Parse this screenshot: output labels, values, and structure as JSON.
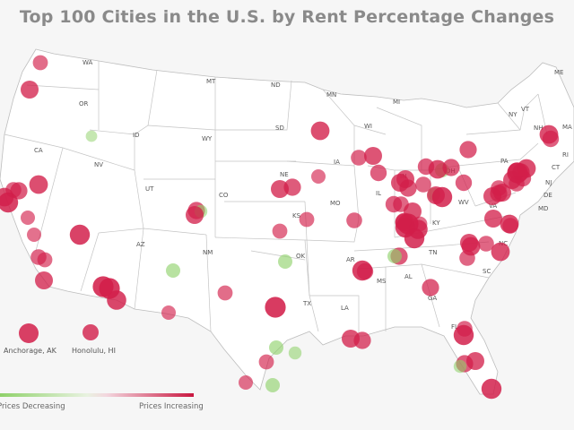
{
  "title": "Top 100 Cities in the U.S. by Rent Percentage Changes",
  "colors": {
    "increase": "#d21e4a",
    "decrease": "#8fd16a",
    "border": "#bdbdbd",
    "land": "#ffffff",
    "background": "#f6f6f6"
  },
  "state_labels": [
    "WA",
    "OR",
    "CA",
    "NV",
    "ID",
    "MT",
    "WY",
    "UT",
    "AZ",
    "NM",
    "CO",
    "ND",
    "SD",
    "NE",
    "KS",
    "OK",
    "TX",
    "MN",
    "IA",
    "MO",
    "AR",
    "LA",
    "WI",
    "IL",
    "MI",
    "IN",
    "OH",
    "KY",
    "TN",
    "MS",
    "AL",
    "GA",
    "FL",
    "SC",
    "NC",
    "VA",
    "WV",
    "PA",
    "NY",
    "VT",
    "NH",
    "ME",
    "MA",
    "RI",
    "CT",
    "NJ",
    "DE",
    "MD"
  ],
  "insets": {
    "alaska": "Anchorage, AK",
    "hawaii": "Honolulu, HI"
  },
  "legend": {
    "left_label": "Prices Decreasing",
    "right_label": "Prices Increasing"
  },
  "markers": [
    {
      "kind": "increase",
      "level": 0.55
    },
    {
      "kind": "increase",
      "level": 0.75
    },
    {
      "kind": "decrease",
      "level": 0.3
    },
    {
      "kind": "increase",
      "level": 0.8
    },
    {
      "kind": "increase",
      "level": 0.6
    },
    {
      "kind": "increase",
      "level": 0.7
    },
    {
      "kind": "increase",
      "level": 0.8
    },
    {
      "kind": "increase",
      "level": 0.9
    },
    {
      "kind": "increase",
      "level": 0.5
    },
    {
      "kind": "increase",
      "level": 0.5
    },
    {
      "kind": "increase",
      "level": 0.9
    },
    {
      "kind": "increase",
      "level": 0.6
    },
    {
      "kind": "increase",
      "level": 0.55
    },
    {
      "kind": "increase",
      "level": 0.75
    },
    {
      "kind": "increase",
      "level": 0.95
    },
    {
      "kind": "increase",
      "level": 0.85
    },
    {
      "kind": "increase",
      "level": 0.95
    },
    {
      "kind": "decrease",
      "level": 0.5
    },
    {
      "kind": "increase",
      "level": 0.5
    },
    {
      "kind": "increase",
      "level": 0.55
    },
    {
      "kind": "increase",
      "level": 0.7
    },
    {
      "kind": "decrease",
      "level": 0.4
    },
    {
      "kind": "increase",
      "level": 0.75
    },
    {
      "kind": "increase",
      "level": 0.55
    },
    {
      "kind": "increase",
      "level": 0.75
    },
    {
      "kind": "increase",
      "level": 0.7
    },
    {
      "kind": "increase",
      "level": 0.55
    },
    {
      "kind": "decrease",
      "level": 0.5
    },
    {
      "kind": "increase",
      "level": 0.95
    },
    {
      "kind": "increase",
      "level": 0.55
    },
    {
      "kind": "decrease",
      "level": 0.5
    },
    {
      "kind": "decrease",
      "level": 0.4
    },
    {
      "kind": "increase",
      "level": 0.5
    },
    {
      "kind": "decrease",
      "level": 0.5
    },
    {
      "kind": "increase",
      "level": 0.6
    },
    {
      "kind": "increase",
      "level": 0.8
    },
    {
      "kind": "increase",
      "level": 0.5
    },
    {
      "kind": "increase",
      "level": 0.6
    },
    {
      "kind": "increase",
      "level": 0.75
    },
    {
      "kind": "increase",
      "level": 0.9
    },
    {
      "kind": "increase",
      "level": 0.65
    },
    {
      "kind": "increase",
      "level": 0.75
    },
    {
      "kind": "increase",
      "level": 0.65
    },
    {
      "kind": "decrease",
      "level": 0.5
    },
    {
      "kind": "increase",
      "level": 0.6
    },
    {
      "kind": "increase",
      "level": 0.55
    },
    {
      "kind": "decrease",
      "level": 0.4
    },
    {
      "kind": "increase",
      "level": 0.6
    },
    {
      "kind": "increase",
      "level": 0.65
    },
    {
      "kind": "increase",
      "level": 0.85
    },
    {
      "kind": "increase",
      "level": 0.75
    },
    {
      "kind": "increase",
      "level": 0.7
    },
    {
      "kind": "increase",
      "level": 0.65
    },
    {
      "kind": "increase",
      "level": 0.75
    },
    {
      "kind": "increase",
      "level": 0.6
    },
    {
      "kind": "increase",
      "level": 0.8
    },
    {
      "kind": "increase",
      "level": 0.7
    },
    {
      "kind": "increase",
      "level": 0.75
    },
    {
      "kind": "increase",
      "level": 0.8
    },
    {
      "kind": "increase",
      "level": 0.75
    },
    {
      "kind": "increase",
      "level": 0.6
    },
    {
      "kind": "increase",
      "level": 0.8
    },
    {
      "kind": "increase",
      "level": 0.95
    },
    {
      "kind": "increase",
      "level": 0.7
    },
    {
      "kind": "increase",
      "level": 0.75
    },
    {
      "kind": "increase",
      "level": 0.65
    },
    {
      "kind": "increase",
      "level": 0.6
    },
    {
      "kind": "increase",
      "level": 0.7
    },
    {
      "kind": "increase",
      "level": 0.7
    },
    {
      "kind": "increase",
      "level": 0.9
    },
    {
      "kind": "increase",
      "level": 0.75
    },
    {
      "kind": "increase",
      "level": 0.7
    },
    {
      "kind": "decrease",
      "level": 0.4
    },
    {
      "kind": "increase",
      "level": 0.9
    },
    {
      "kind": "increase",
      "level": 0.7
    },
    {
      "kind": "increase",
      "level": 0.65
    },
    {
      "kind": "decrease",
      "level": 0.5
    },
    {
      "kind": "increase",
      "level": 0.75
    },
    {
      "kind": "increase",
      "level": 0.6
    },
    {
      "kind": "increase",
      "level": 0.7
    },
    {
      "kind": "increase",
      "level": 0.8
    },
    {
      "kind": "increase",
      "level": 0.65
    },
    {
      "kind": "increase",
      "level": 0.8
    },
    {
      "kind": "increase",
      "level": 0.6
    },
    {
      "kind": "increase",
      "level": 0.75
    },
    {
      "kind": "increase",
      "level": 0.6
    },
    {
      "kind": "increase",
      "level": 0.8
    },
    {
      "kind": "increase",
      "level": 0.9
    },
    {
      "kind": "increase",
      "level": 0.9
    },
    {
      "kind": "increase",
      "level": 0.95
    },
    {
      "kind": "increase",
      "level": 0.75
    },
    {
      "kind": "increase",
      "level": 0.7
    },
    {
      "kind": "increase",
      "level": 0.65
    },
    {
      "kind": "increase",
      "level": 0.8
    },
    {
      "kind": "increase",
      "level": 0.7
    },
    {
      "kind": "increase",
      "level": 0.75
    },
    {
      "kind": "increase",
      "level": 0.9
    }
  ]
}
